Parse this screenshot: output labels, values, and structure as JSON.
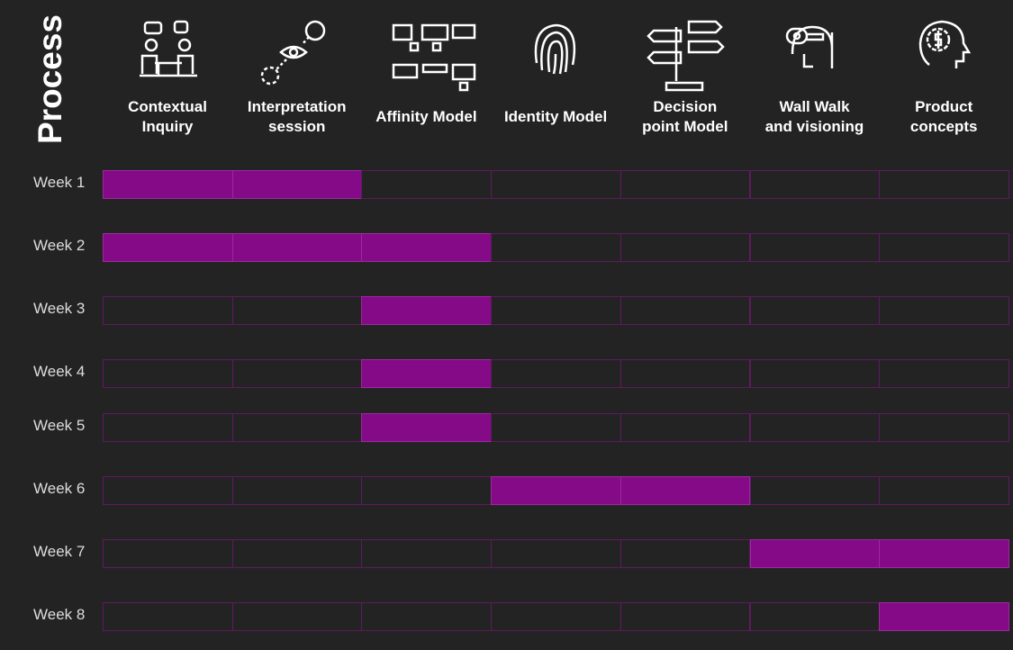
{
  "title": "Process",
  "columns": [
    {
      "lines": [
        "Contextual",
        "Inquiry"
      ]
    },
    {
      "lines": [
        "Interpretation",
        "session"
      ]
    },
    {
      "lines": [
        "Affinity Model"
      ]
    },
    {
      "lines": [
        "Identity Model"
      ]
    },
    {
      "lines": [
        "Decision",
        "point Model"
      ]
    },
    {
      "lines": [
        "Wall Walk",
        "and visioning"
      ]
    },
    {
      "lines": [
        "Product",
        "concepts"
      ]
    }
  ],
  "rows": [
    {
      "label": "Week 1",
      "active": [
        true,
        true,
        false,
        false,
        false,
        false,
        false
      ]
    },
    {
      "label": "Week 2",
      "active": [
        true,
        true,
        true,
        false,
        false,
        false,
        false
      ]
    },
    {
      "label": "Week 3",
      "active": [
        false,
        false,
        true,
        false,
        false,
        false,
        false
      ]
    },
    {
      "label": "Week 4",
      "active": [
        false,
        false,
        true,
        false,
        false,
        false,
        false
      ]
    },
    {
      "label": "Week 5",
      "active": [
        false,
        false,
        true,
        false,
        false,
        false,
        false
      ]
    },
    {
      "label": "Week 6",
      "active": [
        false,
        false,
        false,
        true,
        true,
        false,
        false
      ]
    },
    {
      "label": "Week 7",
      "active": [
        false,
        false,
        false,
        false,
        false,
        true,
        true
      ]
    },
    {
      "label": "Week 8",
      "active": [
        false,
        false,
        false,
        false,
        false,
        false,
        true
      ]
    }
  ]
}
